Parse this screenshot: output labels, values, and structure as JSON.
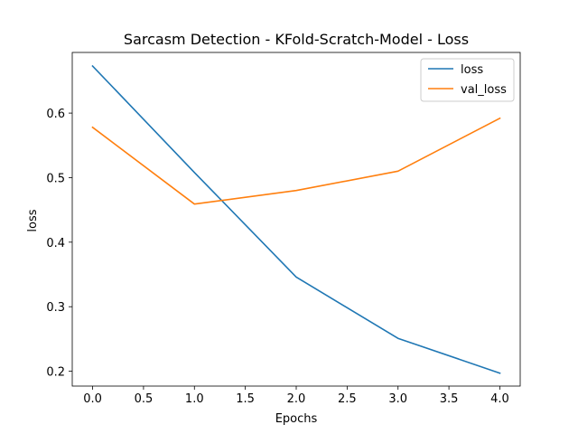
{
  "chart_data": {
    "type": "line",
    "title": "Sarcasm Detection - KFold-Scratch-Model - Loss",
    "xlabel": "Epochs",
    "ylabel": "loss",
    "x": [
      0,
      1,
      2,
      3,
      4
    ],
    "xlim": [
      -0.2,
      4.2
    ],
    "ylim": [
      0.177,
      0.694
    ],
    "xticks": [
      "0.0",
      "0.5",
      "1.0",
      "1.5",
      "2.0",
      "2.5",
      "3.0",
      "3.5",
      "4.0"
    ],
    "yticks": [
      "0.2",
      "0.3",
      "0.4",
      "0.5",
      "0.6"
    ],
    "grid": false,
    "legend_position": "top-right",
    "series": [
      {
        "name": "loss",
        "color": "#1f77b4",
        "values": [
          0.673,
          0.508,
          0.346,
          0.251,
          0.197
        ]
      },
      {
        "name": "val_loss",
        "color": "#ff7f0e",
        "values": [
          0.578,
          0.459,
          0.48,
          0.51,
          0.592
        ]
      }
    ]
  }
}
